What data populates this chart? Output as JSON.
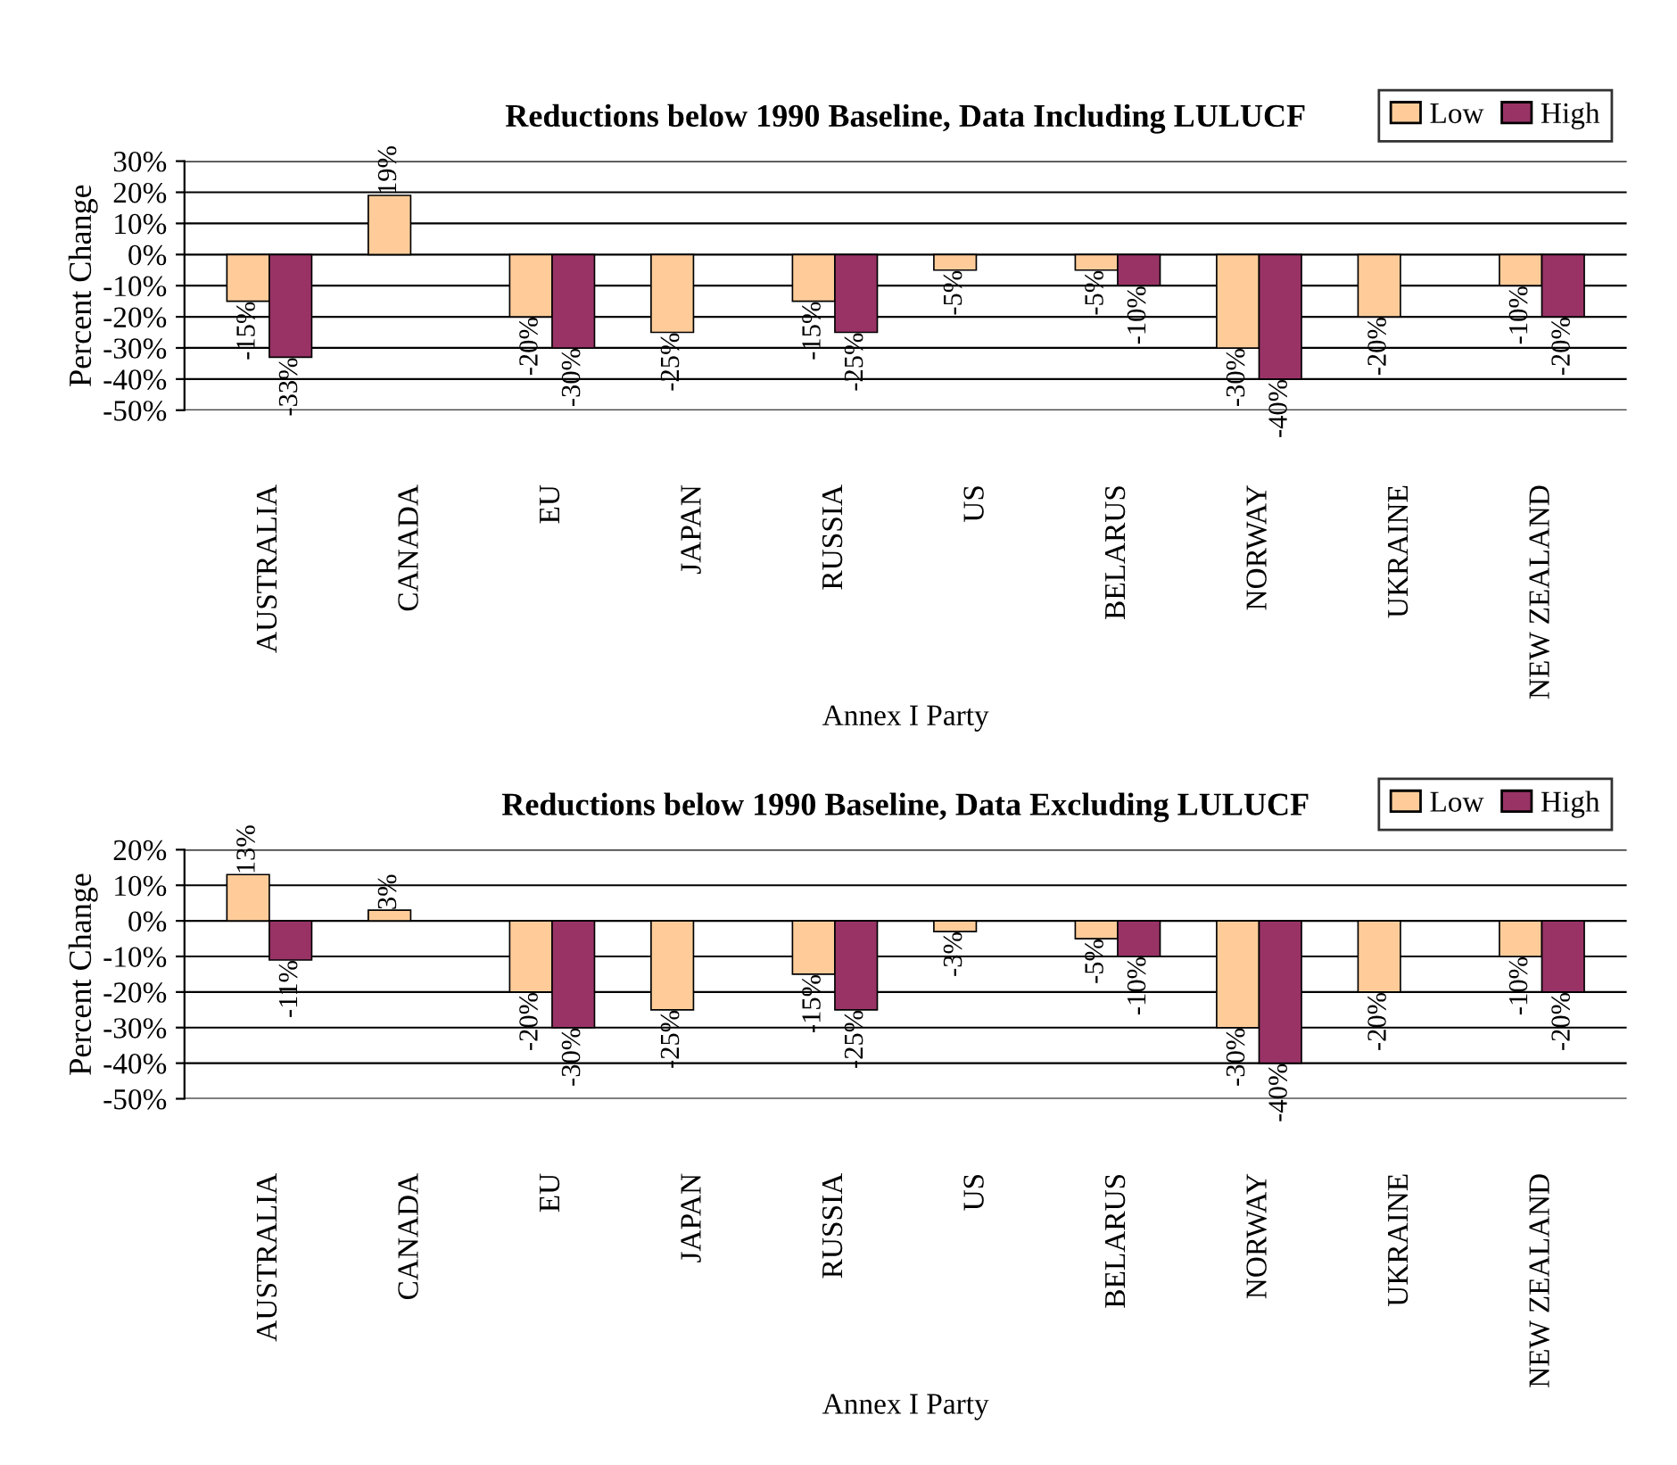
{
  "chart_data": [
    {
      "type": "bar",
      "title": "Reductions below 1990 Baseline, Data Including LULUCF",
      "xlabel": "Annex I Party",
      "ylabel": "Percent Change",
      "categories": [
        "AUSTRALIA",
        "CANADA",
        "EU",
        "JAPAN",
        "RUSSIA",
        "US",
        "BELARUS",
        "NORWAY",
        "UKRAINE",
        "NEW ZEALAND"
      ],
      "series": [
        {
          "name": "Low",
          "color": "#ffcc99",
          "values": [
            -15,
            19,
            -20,
            -25,
            -15,
            -5,
            -5,
            -30,
            -20,
            -10
          ],
          "value_labels": [
            "-15%",
            "19%",
            "-20%",
            "-25%",
            "-15%",
            "-5%",
            "-5%",
            "-30%",
            "-20%",
            "-10%"
          ]
        },
        {
          "name": "High",
          "color": "#993366",
          "values": [
            -33,
            null,
            -30,
            null,
            -25,
            null,
            -10,
            -40,
            null,
            -20
          ],
          "value_labels": [
            "-33%",
            null,
            "-30%",
            null,
            "-25%",
            null,
            "-10%",
            "-40%",
            null,
            "-20%"
          ]
        }
      ],
      "ylim": [
        -50,
        30
      ],
      "yticks": [
        {
          "value": -50,
          "label": "-50%"
        },
        {
          "value": -40,
          "label": "-40%"
        },
        {
          "value": -30,
          "label": "-30%"
        },
        {
          "value": -20,
          "label": "-20%"
        },
        {
          "value": -10,
          "label": "-10%"
        },
        {
          "value": 0,
          "label": "0%"
        },
        {
          "value": 10,
          "label": "10%"
        },
        {
          "value": 20,
          "label": "20%"
        },
        {
          "value": 30,
          "label": "30%"
        }
      ],
      "grid": "y",
      "legend": "top right"
    },
    {
      "type": "bar",
      "title": "Reductions below 1990 Baseline, Data Excluding LULUCF",
      "xlabel": "Annex I Party",
      "ylabel": "Percent Change",
      "categories": [
        "AUSTRALIA",
        "CANADA",
        "EU",
        "JAPAN",
        "RUSSIA",
        "US",
        "BELARUS",
        "NORWAY",
        "UKRAINE",
        "NEW ZEALAND"
      ],
      "series": [
        {
          "name": "Low",
          "color": "#ffcc99",
          "values": [
            13,
            3,
            -20,
            -25,
            -15,
            -3,
            -5,
            -30,
            -20,
            -10
          ],
          "value_labels": [
            "13%",
            "3%",
            "-20%",
            "-25%",
            "-15%",
            "-3%",
            "-5%",
            "-30%",
            "-20%",
            "-10%"
          ]
        },
        {
          "name": "High",
          "color": "#993366",
          "values": [
            -11,
            null,
            -30,
            null,
            -25,
            null,
            -10,
            -40,
            null,
            -20
          ],
          "value_labels": [
            "-11%",
            null,
            "-30%",
            null,
            "-25%",
            null,
            "-10%",
            "-40%",
            null,
            "-20%"
          ]
        }
      ],
      "ylim": [
        -50,
        20
      ],
      "yticks": [
        {
          "value": -50,
          "label": "-50%"
        },
        {
          "value": -40,
          "label": "-40%"
        },
        {
          "value": -30,
          "label": "-30%"
        },
        {
          "value": -20,
          "label": "-20%"
        },
        {
          "value": -10,
          "label": "-10%"
        },
        {
          "value": 0,
          "label": "0%"
        },
        {
          "value": 10,
          "label": "10%"
        },
        {
          "value": 20,
          "label": "20%"
        }
      ],
      "grid": "y",
      "legend": "top right"
    }
  ]
}
